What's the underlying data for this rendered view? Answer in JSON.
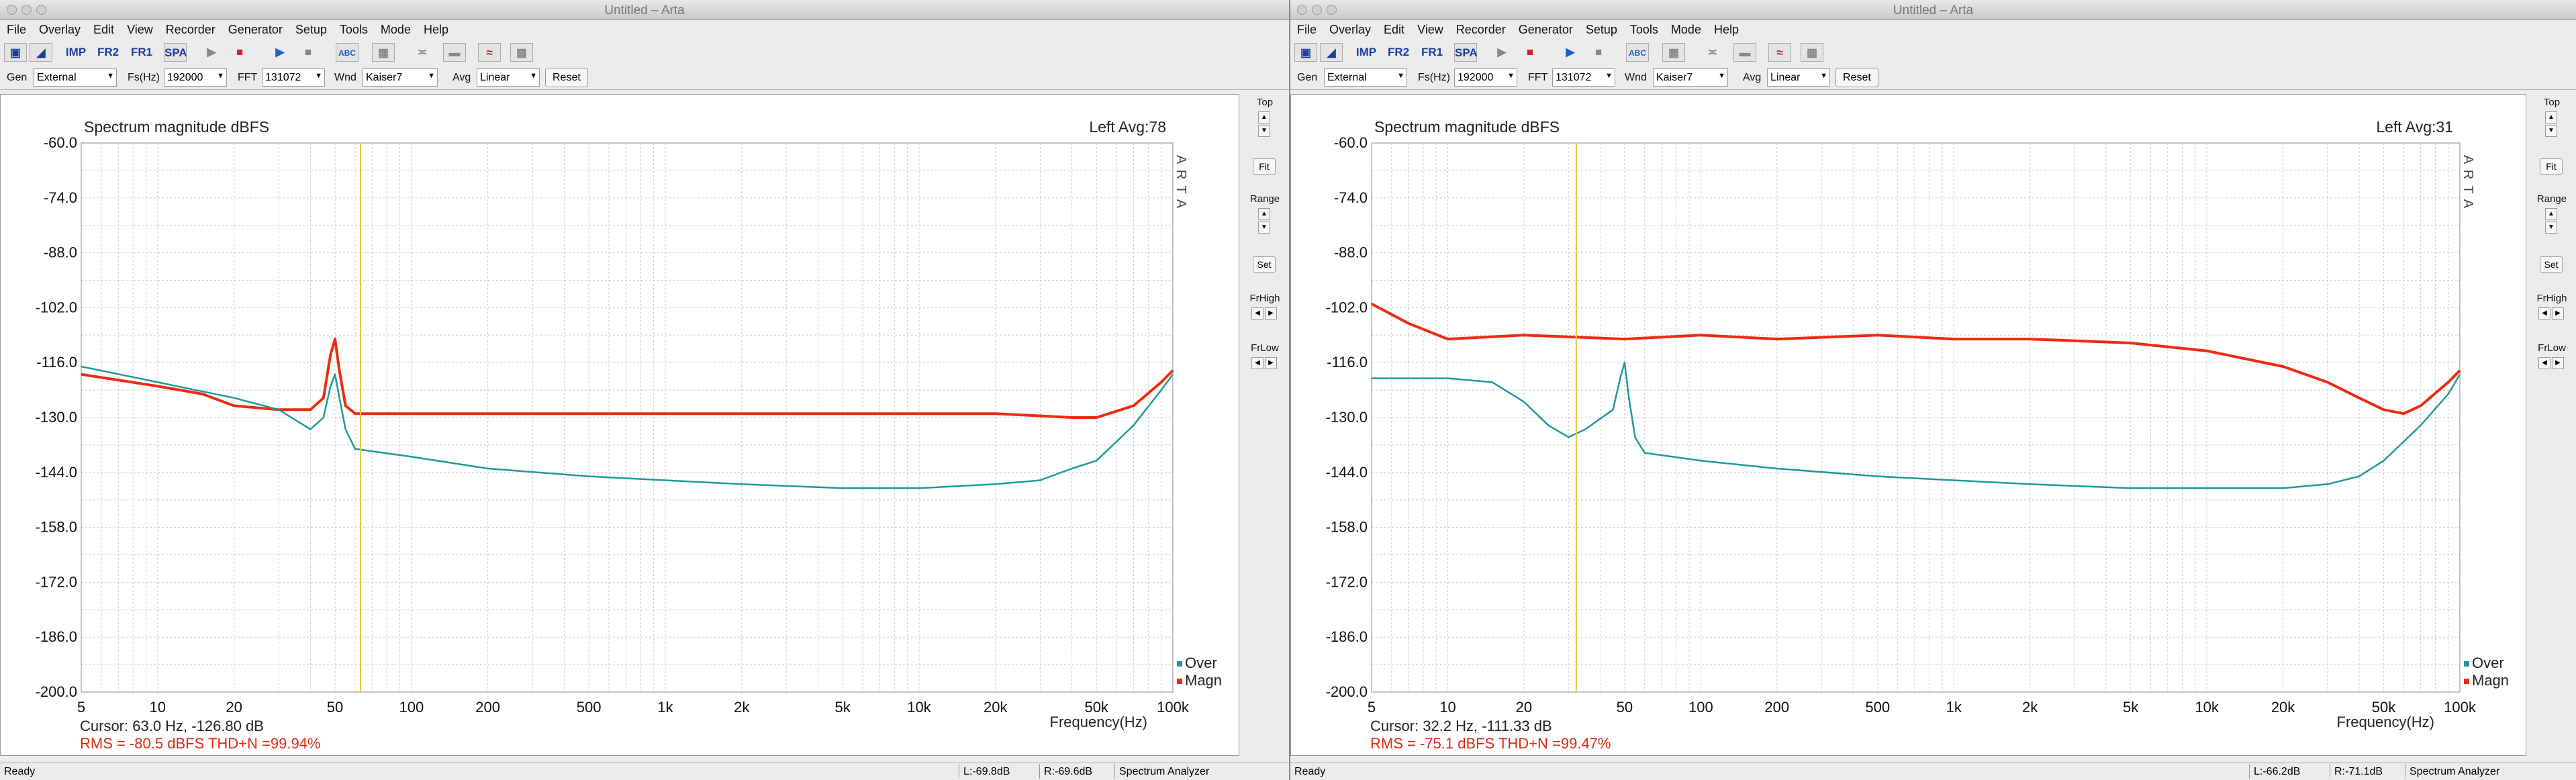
{
  "windows": [
    {
      "title": "Untitled – Arta",
      "menu": [
        "File",
        "Overlay",
        "Edit",
        "View",
        "Recorder",
        "Generator",
        "Setup",
        "Tools",
        "Mode",
        "Help"
      ],
      "toolbar": {
        "imp": "IMP",
        "fr2": "FR2",
        "fr1": "FR1",
        "spa": "SPA"
      },
      "controls": {
        "gen_label": "Gen",
        "gen_value": "External",
        "fs_label": "Fs(Hz)",
        "fs_value": "192000",
        "fft_label": "FFT",
        "fft_value": "131072",
        "wnd_label": "Wnd",
        "wnd_value": "Kaiser7",
        "avg_label": "Avg",
        "avg_value": "Linear",
        "reset_label": "Reset"
      },
      "side": {
        "top": "Top",
        "fit": "Fit",
        "range": "Range",
        "set": "Set",
        "frhigh": "FrHigh",
        "frlow": "FrLow"
      },
      "plot": {
        "title": "Spectrum magnitude dBFS",
        "channel_info": "Left   Avg:78",
        "arta_mark": "A R T A",
        "cursor_text": "Cursor:    63.0 Hz, -126.80 dB",
        "rms_text": "RMS =  -80.5 dBFS   THD+N =99.94%",
        "xlabel": "Frequency(Hz)",
        "legend": [
          {
            "name": "Over",
            "color": "#1f9a98"
          },
          {
            "name": "Magn",
            "color": "#ee2a10"
          }
        ]
      },
      "status": {
        "ready": "Ready",
        "l": "L:-69.8dB",
        "r": "R:-69.6dB",
        "mode": "Spectrum Analyzer"
      }
    },
    {
      "title": "Untitled – Arta",
      "menu": [
        "File",
        "Overlay",
        "Edit",
        "View",
        "Recorder",
        "Generator",
        "Setup",
        "Tools",
        "Mode",
        "Help"
      ],
      "toolbar": {
        "imp": "IMP",
        "fr2": "FR2",
        "fr1": "FR1",
        "spa": "SPA"
      },
      "controls": {
        "gen_label": "Gen",
        "gen_value": "External",
        "fs_label": "Fs(Hz)",
        "fs_value": "192000",
        "fft_label": "FFT",
        "fft_value": "131072",
        "wnd_label": "Wnd",
        "wnd_value": "Kaiser7",
        "avg_label": "Avg",
        "avg_value": "Linear",
        "reset_label": "Reset"
      },
      "side": {
        "top": "Top",
        "fit": "Fit",
        "range": "Range",
        "set": "Set",
        "frhigh": "FrHigh",
        "frlow": "FrLow"
      },
      "plot": {
        "title": "Spectrum magnitude dBFS",
        "channel_info": "Left   Avg:31",
        "arta_mark": "A R T A",
        "cursor_text": "Cursor:    32.2 Hz, -111.33 dB",
        "rms_text": "RMS =  -75.1 dBFS   THD+N =99.47%",
        "xlabel": "Frequency(Hz)",
        "legend": [
          {
            "name": "Over",
            "color": "#1f9a98"
          },
          {
            "name": "Magn",
            "color": "#ee2a10"
          }
        ]
      },
      "status": {
        "ready": "Ready",
        "l": "L:-66.2dB",
        "r": "R:-71.1dB",
        "mode": "Spectrum Analyzer"
      }
    }
  ],
  "chart_data": [
    {
      "type": "line",
      "title": "Spectrum magnitude dBFS",
      "xlabel": "Frequency(Hz)",
      "x_scale": "log",
      "xlim": [
        5,
        100000
      ],
      "ylim": [
        -200,
        -60
      ],
      "x_ticks": [
        "5",
        "10",
        "20",
        "50",
        "100",
        "200",
        "500",
        "1k",
        "2k",
        "5k",
        "10k",
        "20k",
        "50k",
        "100k"
      ],
      "y_ticks": [
        "-60.0",
        "-74.0",
        "-88.0",
        "-102.0",
        "-116.0",
        "-130.0",
        "-144.0",
        "-158.0",
        "-172.0",
        "-186.0",
        "-200.0"
      ],
      "cursor_hz": 63.0,
      "grid": true,
      "legend_position": "bottom-right",
      "series": [
        {
          "name": "Over",
          "color": "#1f9a98",
          "points": [
            [
              5,
              -117
            ],
            [
              10,
              -121
            ],
            [
              20,
              -125
            ],
            [
              30,
              -128
            ],
            [
              40,
              -133
            ],
            [
              45,
              -130
            ],
            [
              48,
              -122
            ],
            [
              50,
              -119
            ],
            [
              52,
              -125
            ],
            [
              55,
              -133
            ],
            [
              60,
              -138
            ],
            [
              100,
              -140
            ],
            [
              200,
              -143
            ],
            [
              500,
              -145
            ],
            [
              1000,
              -146
            ],
            [
              2000,
              -147
            ],
            [
              5000,
              -148
            ],
            [
              10000,
              -148
            ],
            [
              20000,
              -147
            ],
            [
              30000,
              -146
            ],
            [
              40000,
              -143
            ],
            [
              50000,
              -141
            ],
            [
              70000,
              -132
            ],
            [
              90000,
              -123
            ],
            [
              100000,
              -119
            ]
          ]
        },
        {
          "name": "Magn",
          "color": "#ee2a10",
          "points": [
            [
              5,
              -119
            ],
            [
              10,
              -122
            ],
            [
              15,
              -124
            ],
            [
              20,
              -127
            ],
            [
              30,
              -128
            ],
            [
              40,
              -128
            ],
            [
              45,
              -125
            ],
            [
              48,
              -114
            ],
            [
              50,
              -110
            ],
            [
              52,
              -118
            ],
            [
              55,
              -127
            ],
            [
              60,
              -129
            ],
            [
              100,
              -129
            ],
            [
              500,
              -129
            ],
            [
              1000,
              -129
            ],
            [
              5000,
              -129
            ],
            [
              10000,
              -129
            ],
            [
              20000,
              -129
            ],
            [
              40000,
              -130
            ],
            [
              50000,
              -130
            ],
            [
              70000,
              -127
            ],
            [
              90000,
              -121
            ],
            [
              100000,
              -118
            ]
          ]
        }
      ]
    },
    {
      "type": "line",
      "title": "Spectrum magnitude dBFS",
      "xlabel": "Frequency(Hz)",
      "x_scale": "log",
      "xlim": [
        5,
        100000
      ],
      "ylim": [
        -200,
        -60
      ],
      "x_ticks": [
        "5",
        "10",
        "20",
        "50",
        "100",
        "200",
        "500",
        "1k",
        "2k",
        "5k",
        "10k",
        "20k",
        "50k",
        "100k"
      ],
      "y_ticks": [
        "-60.0",
        "-74.0",
        "-88.0",
        "-102.0",
        "-116.0",
        "-130.0",
        "-144.0",
        "-158.0",
        "-172.0",
        "-186.0",
        "-200.0"
      ],
      "cursor_hz": 32.2,
      "grid": true,
      "legend_position": "bottom-right",
      "series": [
        {
          "name": "Over",
          "color": "#1f9a98",
          "points": [
            [
              5,
              -120
            ],
            [
              10,
              -120
            ],
            [
              15,
              -121
            ],
            [
              20,
              -126
            ],
            [
              25,
              -132
            ],
            [
              30,
              -135
            ],
            [
              35,
              -133
            ],
            [
              45,
              -128
            ],
            [
              48,
              -120
            ],
            [
              50,
              -116
            ],
            [
              52,
              -125
            ],
            [
              55,
              -135
            ],
            [
              60,
              -139
            ],
            [
              100,
              -141
            ],
            [
              200,
              -143
            ],
            [
              500,
              -145
            ],
            [
              1000,
              -146
            ],
            [
              2000,
              -147
            ],
            [
              5000,
              -148
            ],
            [
              10000,
              -148
            ],
            [
              20000,
              -148
            ],
            [
              30000,
              -147
            ],
            [
              40000,
              -145
            ],
            [
              50000,
              -141
            ],
            [
              70000,
              -132
            ],
            [
              90000,
              -124
            ],
            [
              100000,
              -119
            ]
          ]
        },
        {
          "name": "Magn",
          "color": "#ee2a10",
          "points": [
            [
              5,
              -101
            ],
            [
              7,
              -106
            ],
            [
              10,
              -110
            ],
            [
              20,
              -109
            ],
            [
              50,
              -110
            ],
            [
              100,
              -109
            ],
            [
              200,
              -110
            ],
            [
              500,
              -109
            ],
            [
              1000,
              -110
            ],
            [
              2000,
              -110
            ],
            [
              5000,
              -111
            ],
            [
              10000,
              -113
            ],
            [
              20000,
              -117
            ],
            [
              30000,
              -121
            ],
            [
              40000,
              -125
            ],
            [
              50000,
              -128
            ],
            [
              60000,
              -129
            ],
            [
              70000,
              -127
            ],
            [
              90000,
              -121
            ],
            [
              100000,
              -118
            ]
          ]
        }
      ]
    }
  ]
}
